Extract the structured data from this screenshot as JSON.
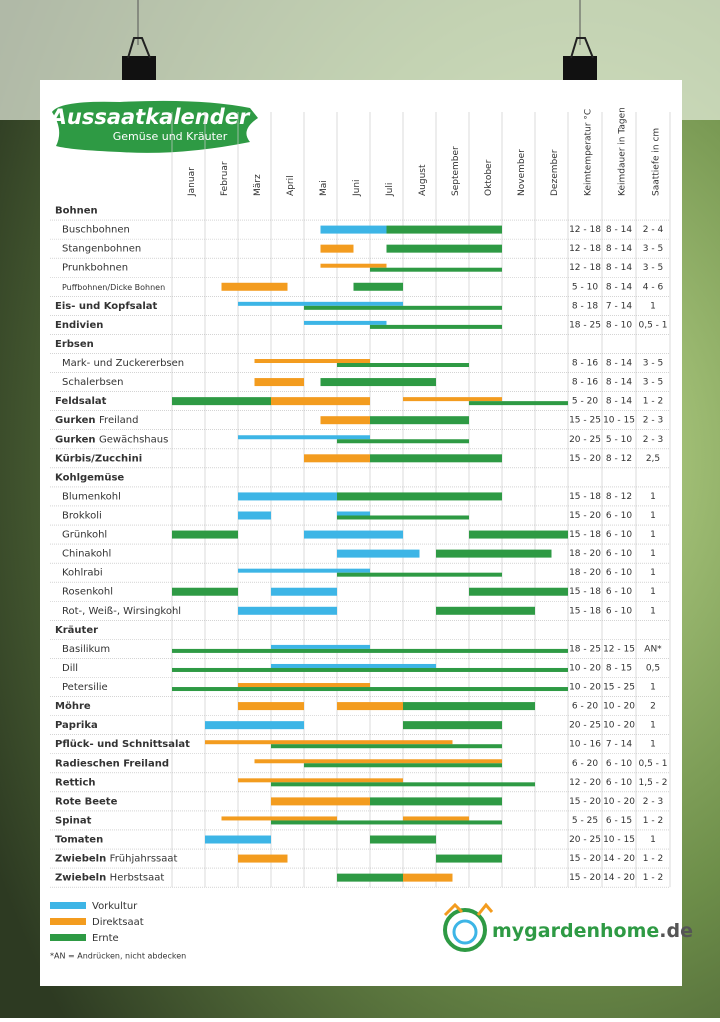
{
  "header": {
    "title": "Aussaatkalender",
    "subtitle": "Gemüse und Kräuter"
  },
  "months": [
    "Januar",
    "Februar",
    "März",
    "April",
    "Mai",
    "Juni",
    "Juli",
    "August",
    "September",
    "Oktober",
    "November",
    "Dezember"
  ],
  "columns": [
    "Keimtemperatur °C",
    "Keimdauer in Tagen",
    "Saattiefe in cm"
  ],
  "legend": [
    {
      "label": "Vorkultur",
      "color": "#3db5e6"
    },
    {
      "label": "Direktsaat",
      "color": "#f39c1f"
    },
    {
      "label": "Ernte",
      "color": "#2e9a44"
    }
  ],
  "rows": [
    {
      "name": "Bohnen",
      "group": true
    },
    {
      "name": "Buschbohnen",
      "indent": true,
      "bars": [
        {
          "k": 0,
          "from": 4.5,
          "to": 6.5
        },
        {
          "k": 2,
          "from": 6.5,
          "to": 10
        }
      ],
      "cells": [
        "12 - 18",
        "8 - 14",
        "2 - 4"
      ]
    },
    {
      "name": "Stangenbohnen",
      "indent": true,
      "bars": [
        {
          "k": 1,
          "from": 4.5,
          "to": 5.5
        },
        {
          "k": 2,
          "from": 6.5,
          "to": 10
        }
      ],
      "cells": [
        "12 - 18",
        "8 - 14",
        "3 - 5"
      ]
    },
    {
      "name": "Prunkbohnen",
      "indent": true,
      "bars": [
        {
          "k": 1,
          "from": 4.5,
          "to": 6.5
        },
        {
          "k": 2,
          "from": 6,
          "to": 10
        }
      ],
      "cells": [
        "12 - 18",
        "8 - 14",
        "3 - 5"
      ]
    },
    {
      "name": "Puffbohnen/Dicke Bohnen",
      "indent": true,
      "small": true,
      "bars": [
        {
          "k": 1,
          "from": 1.5,
          "to": 3.5
        },
        {
          "k": 2,
          "from": 5.5,
          "to": 7
        }
      ],
      "cells": [
        "5 - 10",
        "8 - 14",
        "4 - 6"
      ]
    },
    {
      "name": "Eis- und Kopfsalat",
      "bold": true,
      "bars": [
        {
          "k": 0,
          "from": 2,
          "to": 7
        },
        {
          "k": 2,
          "from": 4,
          "to": 10
        }
      ],
      "cells": [
        "8 - 18",
        "7 - 14",
        "1"
      ]
    },
    {
      "name": "Endivien",
      "bold": true,
      "bars": [
        {
          "k": 0,
          "from": 4,
          "to": 6.5
        },
        {
          "k": 2,
          "from": 6,
          "to": 10
        }
      ],
      "cells": [
        "18 - 25",
        "8 - 10",
        "0,5 - 1"
      ]
    },
    {
      "name": "Erbsen",
      "group": true
    },
    {
      "name": "Mark- und Zuckererbsen",
      "indent": true,
      "bars": [
        {
          "k": 1,
          "from": 2.5,
          "to": 6
        },
        {
          "k": 2,
          "from": 5,
          "to": 9
        }
      ],
      "cells": [
        "8 - 16",
        "8 - 14",
        "3 - 5"
      ]
    },
    {
      "name": "Schalerbsen",
      "indent": true,
      "bars": [
        {
          "k": 1,
          "from": 2.5,
          "to": 4
        },
        {
          "k": 2,
          "from": 4.5,
          "to": 8
        }
      ],
      "cells": [
        "8 - 16",
        "8 - 14",
        "3 - 5"
      ]
    },
    {
      "name": "Feldsalat",
      "bold": true,
      "bars": [
        {
          "k": 2,
          "from": 0,
          "to": 3
        },
        {
          "k": 1,
          "from": 3,
          "to": 6
        },
        {
          "k": 1,
          "from": 7,
          "to": 10
        },
        {
          "k": 2,
          "from": 9,
          "to": 12
        }
      ],
      "cells": [
        "5 - 20",
        "8 - 14",
        "1 - 2"
      ]
    },
    {
      "name": "Gurken",
      "sub": "Freiland",
      "bold": true,
      "bars": [
        {
          "k": 1,
          "from": 4.5,
          "to": 6
        },
        {
          "k": 2,
          "from": 6,
          "to": 9
        }
      ],
      "cells": [
        "15 - 25",
        "10 - 15",
        "2 - 3"
      ]
    },
    {
      "name": "Gurken",
      "sub": "Gewächshaus",
      "bold": true,
      "bars": [
        {
          "k": 0,
          "from": 2,
          "to": 6
        },
        {
          "k": 2,
          "from": 5,
          "to": 9
        }
      ],
      "cells": [
        "20 - 25",
        "5 - 10",
        "2 - 3"
      ]
    },
    {
      "name": "Kürbis/Zucchini",
      "bold": true,
      "bars": [
        {
          "k": 1,
          "from": 4,
          "to": 6
        },
        {
          "k": 2,
          "from": 6,
          "to": 10
        }
      ],
      "cells": [
        "15 - 20",
        "8 - 12",
        "2,5"
      ]
    },
    {
      "name": "Kohlgemüse",
      "group": true
    },
    {
      "name": "Blumenkohl",
      "indent": true,
      "bars": [
        {
          "k": 0,
          "from": 2,
          "to": 5
        },
        {
          "k": 2,
          "from": 5,
          "to": 10
        }
      ],
      "cells": [
        "15 - 18",
        "8 - 12",
        "1"
      ]
    },
    {
      "name": "Brokkoli",
      "indent": true,
      "bars": [
        {
          "k": 0,
          "from": 2,
          "to": 3
        },
        {
          "k": 0,
          "from": 5,
          "to": 6
        },
        {
          "k": 2,
          "from": 5,
          "to": 9
        }
      ],
      "cells": [
        "15 - 20",
        "6 - 10",
        "1"
      ]
    },
    {
      "name": "Grünkohl",
      "indent": true,
      "bars": [
        {
          "k": 2,
          "from": 0,
          "to": 2
        },
        {
          "k": 0,
          "from": 4,
          "to": 7
        },
        {
          "k": 2,
          "from": 9,
          "to": 12
        }
      ],
      "cells": [
        "15 - 18",
        "6 - 10",
        "1"
      ]
    },
    {
      "name": "Chinakohl",
      "indent": true,
      "bars": [
        {
          "k": 0,
          "from": 5,
          "to": 7.5
        },
        {
          "k": 2,
          "from": 8,
          "to": 11.5
        }
      ],
      "cells": [
        "18 - 20",
        "6 - 10",
        "1"
      ]
    },
    {
      "name": "Kohlrabi",
      "indent": true,
      "bars": [
        {
          "k": 0,
          "from": 2,
          "to": 6
        },
        {
          "k": 2,
          "from": 5,
          "to": 10
        }
      ],
      "cells": [
        "18 - 20",
        "6 - 10",
        "1"
      ]
    },
    {
      "name": "Rosenkohl",
      "indent": true,
      "bars": [
        {
          "k": 2,
          "from": 0,
          "to": 2
        },
        {
          "k": 0,
          "from": 3,
          "to": 5
        },
        {
          "k": 2,
          "from": 9,
          "to": 12
        }
      ],
      "cells": [
        "15 - 18",
        "6 - 10",
        "1"
      ]
    },
    {
      "name": "Rot-, Weiß-, Wirsingkohl",
      "indent": true,
      "bars": [
        {
          "k": 0,
          "from": 2,
          "to": 5
        },
        {
          "k": 2,
          "from": 8,
          "to": 11
        }
      ],
      "cells": [
        "15 - 18",
        "6 - 10",
        "1"
      ]
    },
    {
      "name": "Kräuter",
      "group": true
    },
    {
      "name": "Basilikum",
      "indent": true,
      "bars": [
        {
          "k": 0,
          "from": 3,
          "to": 6
        },
        {
          "k": 2,
          "from": 0,
          "to": 12
        }
      ],
      "cells": [
        "18 - 25",
        "12 - 15",
        "AN*"
      ]
    },
    {
      "name": "Dill",
      "indent": true,
      "bars": [
        {
          "k": 0,
          "from": 3,
          "to": 8
        },
        {
          "k": 2,
          "from": 0,
          "to": 12
        }
      ],
      "cells": [
        "10 - 20",
        "8 - 15",
        "0,5"
      ]
    },
    {
      "name": "Petersilie",
      "indent": true,
      "bars": [
        {
          "k": 1,
          "from": 2,
          "to": 6
        },
        {
          "k": 2,
          "from": 0,
          "to": 12
        }
      ],
      "cells": [
        "10 - 20",
        "15 - 25",
        "1"
      ]
    },
    {
      "name": "Möhre",
      "bold": true,
      "bars": [
        {
          "k": 1,
          "from": 2,
          "to": 4
        },
        {
          "k": 1,
          "from": 5,
          "to": 7
        },
        {
          "k": 2,
          "from": 7,
          "to": 11
        }
      ],
      "cells": [
        "6 - 20",
        "10 - 20",
        "2"
      ]
    },
    {
      "name": "Paprika",
      "bold": true,
      "bars": [
        {
          "k": 0,
          "from": 1,
          "to": 4
        },
        {
          "k": 2,
          "from": 7,
          "to": 10
        }
      ],
      "cells": [
        "20 - 25",
        "10 - 20",
        "1"
      ]
    },
    {
      "name": "Pflück- und Schnittsalat",
      "bold": true,
      "bars": [
        {
          "k": 1,
          "from": 1,
          "to": 8.5
        },
        {
          "k": 2,
          "from": 3,
          "to": 10
        }
      ],
      "cells": [
        "10 - 16",
        "7 - 14",
        "1"
      ]
    },
    {
      "name": "Radieschen Freiland",
      "bold": true,
      "bars": [
        {
          "k": 1,
          "from": 2.5,
          "to": 10
        },
        {
          "k": 2,
          "from": 4,
          "to": 10
        }
      ],
      "cells": [
        "6 - 20",
        "6 - 10",
        "0,5 - 1"
      ]
    },
    {
      "name": "Rettich",
      "bold": true,
      "bars": [
        {
          "k": 1,
          "from": 2,
          "to": 7
        },
        {
          "k": 2,
          "from": 3,
          "to": 11
        }
      ],
      "cells": [
        "12 - 20",
        "6 - 10",
        "1,5 - 2"
      ]
    },
    {
      "name": "Rote Beete",
      "bold": true,
      "bars": [
        {
          "k": 1,
          "from": 3,
          "to": 6
        },
        {
          "k": 2,
          "from": 6,
          "to": 10
        }
      ],
      "cells": [
        "15 - 20",
        "10 - 20",
        "2 - 3"
      ]
    },
    {
      "name": "Spinat",
      "bold": true,
      "bars": [
        {
          "k": 1,
          "from": 1.5,
          "to": 5
        },
        {
          "k": 1,
          "from": 7,
          "to": 9
        },
        {
          "k": 2,
          "from": 3,
          "to": 10
        }
      ],
      "cells": [
        "5 - 25",
        "6 - 15",
        "1 - 2"
      ]
    },
    {
      "name": "Tomaten",
      "bold": true,
      "bars": [
        {
          "k": 0,
          "from": 1,
          "to": 3
        },
        {
          "k": 2,
          "from": 6,
          "to": 8
        }
      ],
      "cells": [
        "20 - 25",
        "10 - 15",
        "1"
      ]
    },
    {
      "name": "Zwiebeln",
      "sub": "Frühjahrssaat",
      "bold": true,
      "bars": [
        {
          "k": 1,
          "from": 2,
          "to": 3.5
        },
        {
          "k": 2,
          "from": 8,
          "to": 10
        }
      ],
      "cells": [
        "15 - 20",
        "14 - 20",
        "1 - 2"
      ]
    },
    {
      "name": "Zwiebeln",
      "sub": "Herbstsaat",
      "bold": true,
      "bars": [
        {
          "k": 2,
          "from": 5,
          "to": 7
        },
        {
          "k": 1,
          "from": 7,
          "to": 8.5
        }
      ],
      "cells": [
        "15 - 20",
        "14 - 20",
        "1 - 2"
      ]
    }
  ],
  "footnote": "*AN = Andrücken, nicht abdecken",
  "brand": {
    "name": "mygardenhome",
    "tld": ".de"
  }
}
